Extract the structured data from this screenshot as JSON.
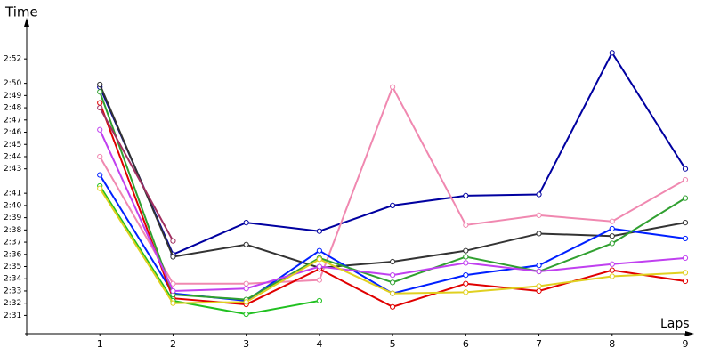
{
  "chart_data": {
    "type": "line",
    "y_label": "Time",
    "x_label": "Laps",
    "x": [
      1,
      2,
      3,
      4,
      5,
      6,
      7,
      8,
      9
    ],
    "xlim": [
      0,
      9
    ],
    "xticks": [
      1,
      2,
      3,
      4,
      5,
      6,
      7,
      8,
      9
    ],
    "ylim": [
      149.5,
      175
    ],
    "yticks": [
      {
        "value": 151,
        "label": "2:31"
      },
      {
        "value": 152,
        "label": "2:32"
      },
      {
        "value": 153,
        "label": "2:33"
      },
      {
        "value": 154,
        "label": "2:34"
      },
      {
        "value": 155,
        "label": "2:35"
      },
      {
        "value": 156,
        "label": "2:36"
      },
      {
        "value": 157,
        "label": "2:37"
      },
      {
        "value": 158,
        "label": "2:38"
      },
      {
        "value": 159,
        "label": "2:39"
      },
      {
        "value": 160,
        "label": "2:40"
      },
      {
        "value": 161,
        "label": "2:41"
      },
      {
        "value": 163,
        "label": "2:43"
      },
      {
        "value": 164,
        "label": "2:44"
      },
      {
        "value": 165,
        "label": "2:45"
      },
      {
        "value": 166,
        "label": "2:46"
      },
      {
        "value": 167,
        "label": "2:47"
      },
      {
        "value": 168,
        "label": "2:48"
      },
      {
        "value": 169,
        "label": "2:49"
      },
      {
        "value": 170,
        "label": "2:50"
      },
      {
        "value": 172,
        "label": "2:52"
      }
    ],
    "series": [
      {
        "color": "#0000a0",
        "values": [
          169.7,
          156.0,
          158.6,
          157.9,
          160.0,
          160.8,
          160.9,
          172.5,
          163.0
        ]
      },
      {
        "color": "#333333",
        "values": [
          169.9,
          155.8,
          156.8,
          154.9,
          155.4,
          156.3,
          157.7,
          157.5,
          158.6
        ]
      },
      {
        "color": "#f088b0",
        "values": [
          164.0,
          153.6,
          153.6,
          153.9,
          169.7,
          158.4,
          159.2,
          158.7,
          162.1
        ]
      },
      {
        "color": "#0020ff",
        "values": [
          162.5,
          152.8,
          152.2,
          156.3,
          152.8,
          154.3,
          155.1,
          158.1,
          157.3
        ]
      },
      {
        "color": "#e00000",
        "values": [
          168.4,
          152.4,
          151.9,
          154.8,
          151.7,
          153.6,
          153.0,
          154.7,
          153.8
        ]
      },
      {
        "color": "#30a030",
        "values": [
          169.3,
          152.7,
          152.3,
          155.7,
          153.7,
          155.8,
          154.6,
          156.9,
          160.6
        ]
      },
      {
        "color": "#20c020",
        "values": [
          161.6,
          152.2,
          151.1,
          152.2,
          null,
          null,
          null,
          null,
          null
        ]
      },
      {
        "color": "#c040f0",
        "values": [
          166.2,
          153.0,
          153.2,
          155.0,
          154.3,
          155.3,
          154.6,
          155.2,
          155.7
        ]
      },
      {
        "color": "#e0d020",
        "values": [
          161.4,
          152.0,
          152.1,
          155.6,
          152.8,
          152.9,
          153.4,
          154.2,
          154.5
        ]
      },
      {
        "color": "#a03060",
        "values": [
          168.0,
          157.1,
          null,
          null,
          null,
          null,
          null,
          null,
          null
        ]
      }
    ]
  }
}
